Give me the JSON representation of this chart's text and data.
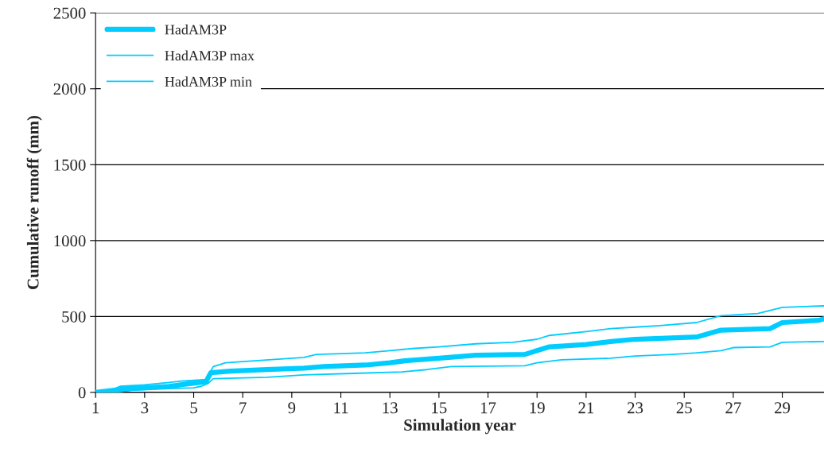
{
  "chart_data": {
    "type": "line",
    "xlabel": "Simulation year",
    "ylabel": "Cumulative runoff (mm)",
    "xlim": [
      1,
      30.7
    ],
    "xticks": [
      1,
      3,
      5,
      7,
      9,
      11,
      13,
      15,
      17,
      19,
      21,
      23,
      25,
      27,
      29
    ],
    "ylim": [
      0,
      2500
    ],
    "yticks": [
      0,
      500,
      1000,
      1500,
      2000,
      2500
    ],
    "grid": "y",
    "legend": "top left",
    "marker": "none",
    "line_style": "solid",
    "series": [
      {
        "name": "HadAM3P",
        "color": "#00ccff",
        "x": [
          1,
          1.5,
          2.3,
          3,
          4,
          4.7,
          5.5,
          5.7,
          6.5,
          8,
          9.5,
          10.3,
          12,
          13,
          13.7,
          15,
          16.5,
          18.5,
          19,
          19.5,
          21,
          22,
          23,
          25.5,
          26.5,
          28.5,
          29,
          30.5,
          30.7
        ],
        "values": [
          0,
          10,
          25,
          30,
          40,
          55,
          70,
          130,
          140,
          150,
          160,
          170,
          180,
          195,
          210,
          225,
          245,
          250,
          275,
          300,
          315,
          335,
          350,
          365,
          410,
          420,
          460,
          475,
          485
        ]
      },
      {
        "name": "HadAM3P max",
        "color": "#00ccff",
        "x": [
          1,
          1.5,
          2,
          3,
          4,
          4.5,
          5.5,
          5.8,
          6.3,
          9.5,
          10,
          12,
          13,
          14,
          15,
          16.5,
          18,
          19,
          19.5,
          21,
          22,
          23,
          24,
          25.5,
          26.5,
          28,
          29,
          30.7
        ],
        "values": [
          0,
          5,
          40,
          50,
          65,
          75,
          85,
          170,
          195,
          230,
          250,
          260,
          275,
          290,
          300,
          320,
          330,
          350,
          375,
          400,
          420,
          430,
          440,
          460,
          505,
          520,
          560,
          570
        ]
      },
      {
        "name": "HadAM3P min",
        "color": "#00ccff",
        "x": [
          1,
          2,
          2.5,
          4,
          5,
          5.3,
          5.6,
          5.8,
          8,
          9.5,
          11.5,
          13.5,
          14.5,
          15.5,
          18.5,
          19,
          20,
          22,
          23,
          24.5,
          25.5,
          26.5,
          27,
          28.5,
          29,
          30.7
        ],
        "values": [
          0,
          5,
          15,
          25,
          30,
          40,
          60,
          90,
          100,
          115,
          125,
          135,
          150,
          170,
          175,
          195,
          215,
          225,
          240,
          250,
          260,
          275,
          295,
          300,
          330,
          335
        ]
      }
    ]
  }
}
